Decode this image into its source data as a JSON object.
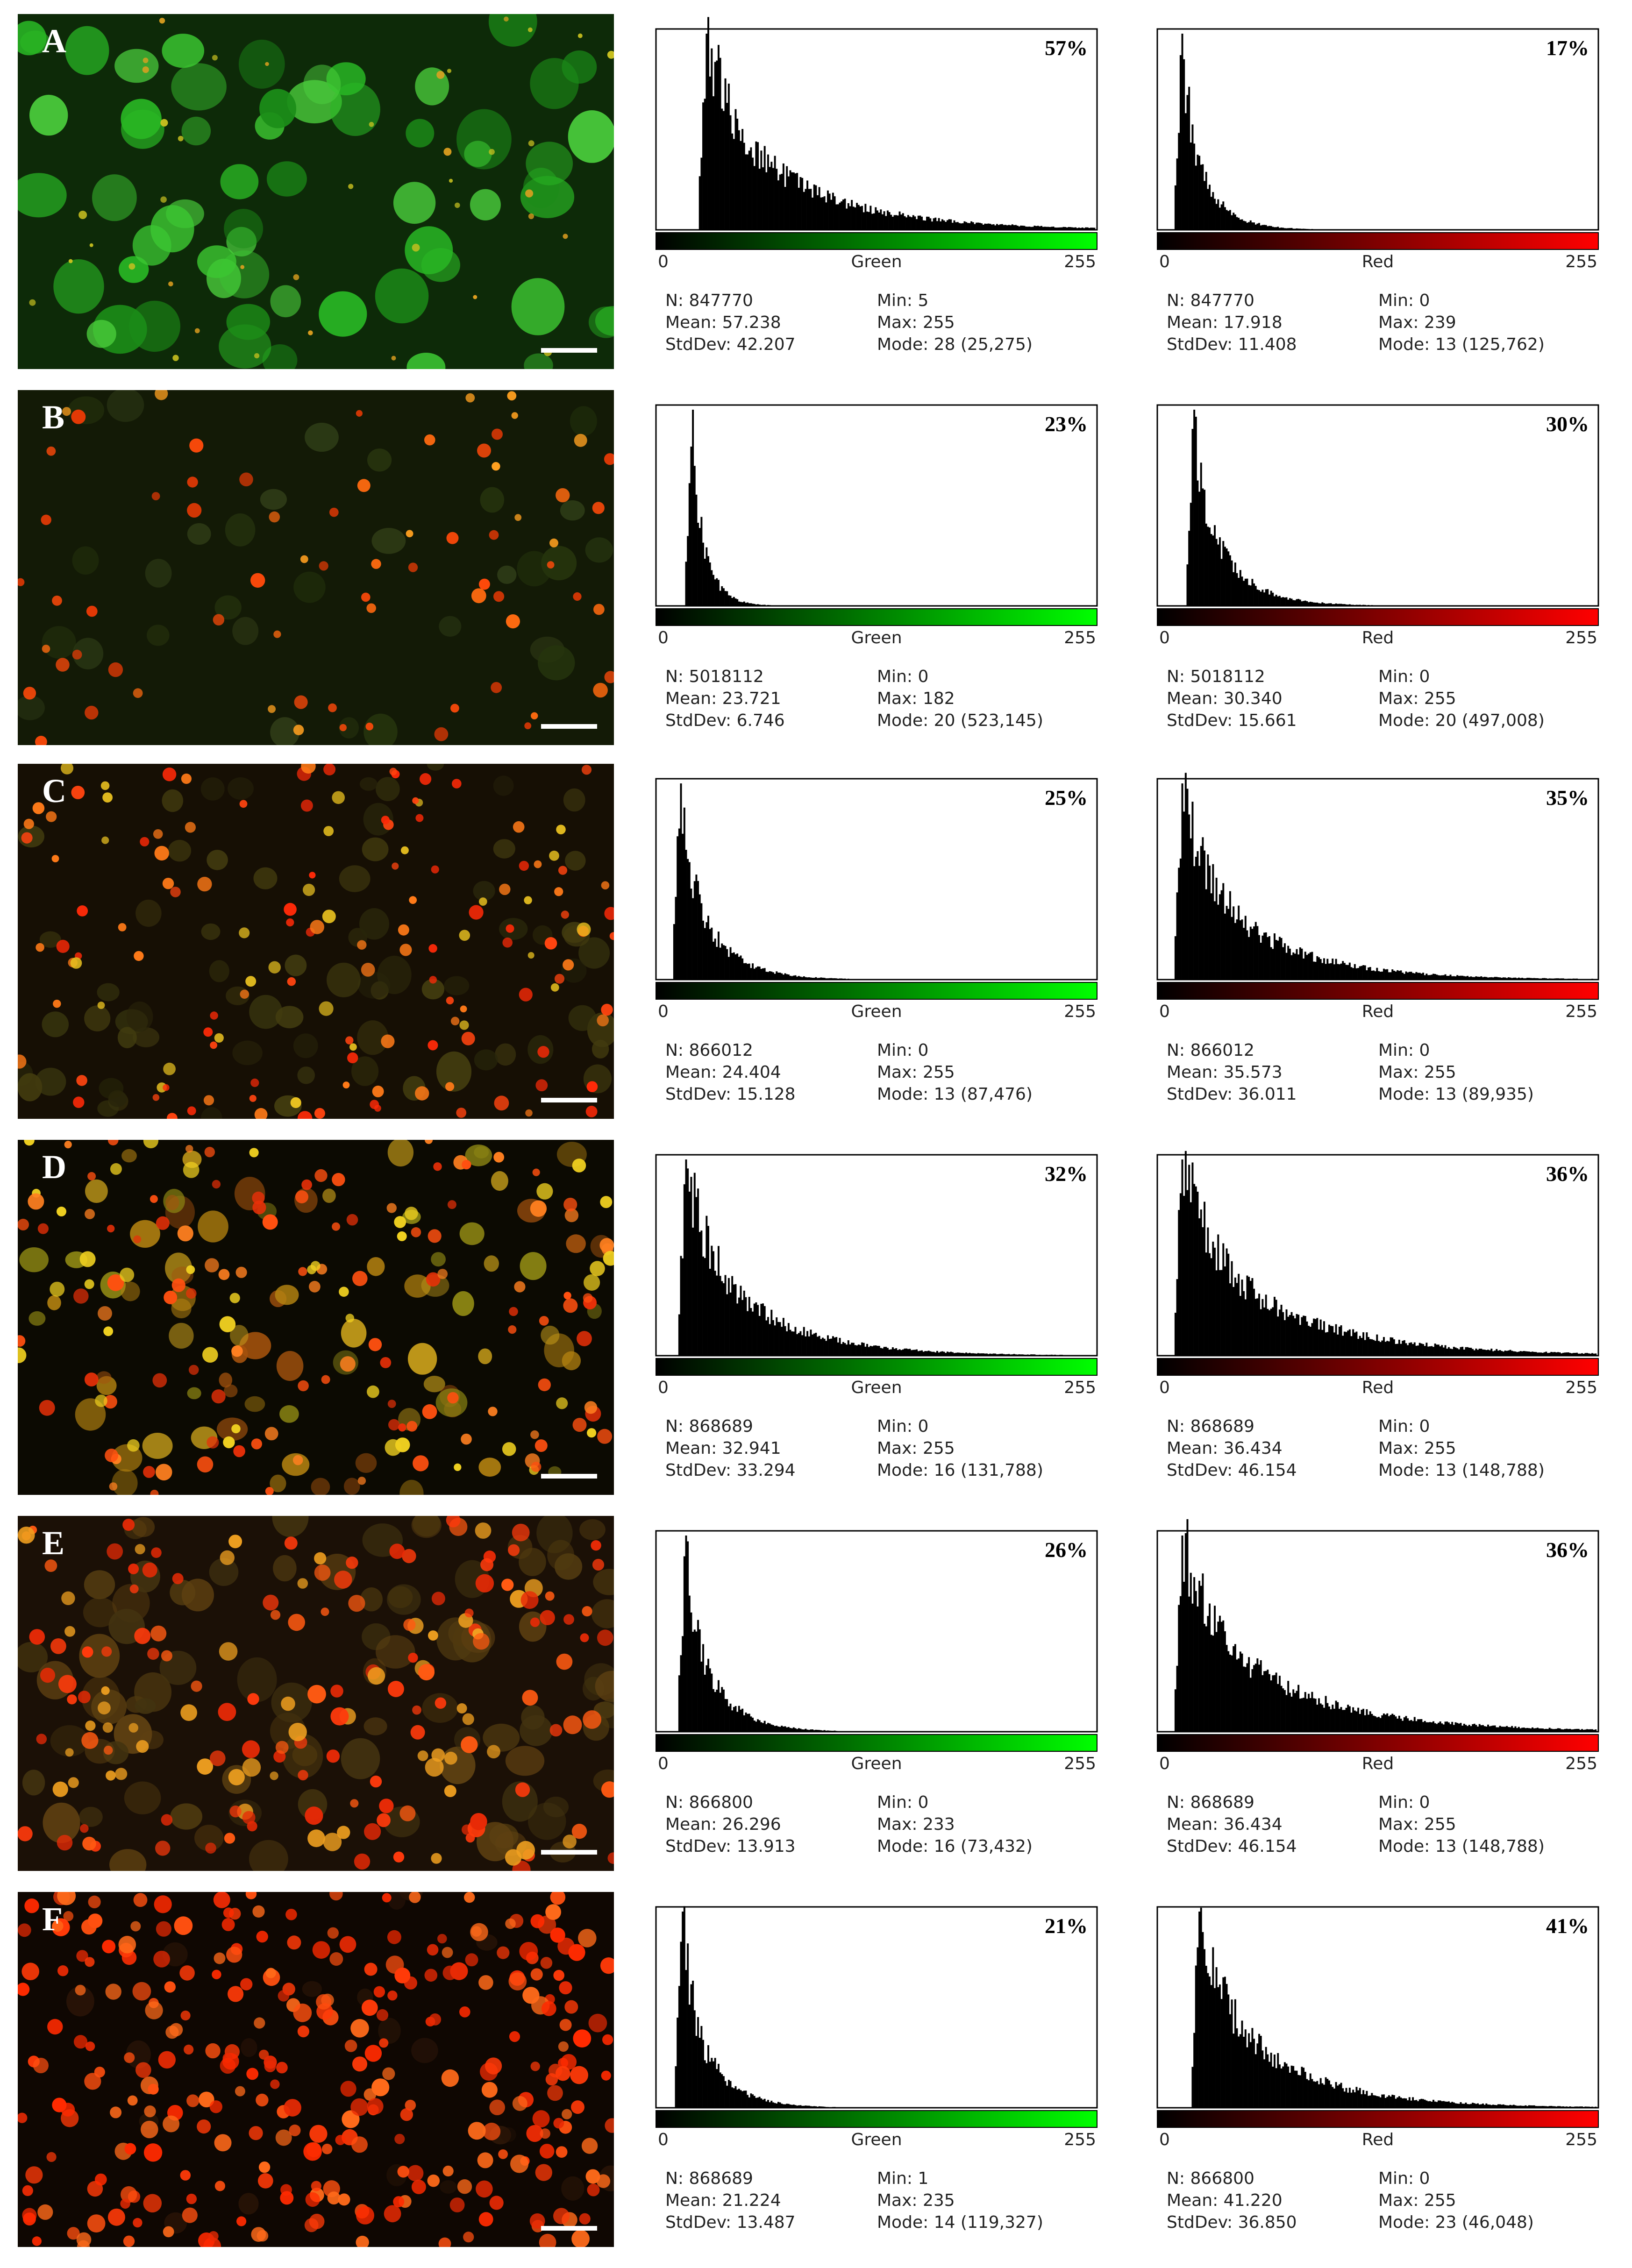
{
  "colors": {
    "green_bar_end": "#00ff00",
    "red_bar_end": "#ff0000",
    "histogram_fill": "#000000",
    "frame": "#000000"
  },
  "panels": [
    {
      "letter": "A",
      "image_tint": "green",
      "green": {
        "percent": "57%",
        "axis_min": "0",
        "axis_label": "Green",
        "axis_max": "255",
        "N": "N: 847770",
        "Mean": "Mean: 57.238",
        "StdDev": "StdDev: 42.207",
        "Min": "Min: 5",
        "Max": "Max: 255",
        "Mode": "Mode: 28 (25,275)",
        "stats_value": {
          "N": 847770,
          "Mean": 57.238,
          "StdDev": 42.207,
          "Min": 5,
          "Max": 255,
          "Mode": 28,
          "ModeCount": 25275
        }
      },
      "red": {
        "percent": "17%",
        "axis_min": "0",
        "axis_label": "Red",
        "axis_max": "255",
        "N": "N: 847770",
        "Mean": "Mean: 17.918",
        "StdDev": "StdDev: 11.408",
        "Min": "Min: 0",
        "Max": "Max: 239",
        "Mode": "Mode: 13 (125,762)",
        "stats_value": {
          "N": 847770,
          "Mean": 17.918,
          "StdDev": 11.408,
          "Min": 0,
          "Max": 239,
          "Mode": 13,
          "ModeCount": 125762
        }
      }
    },
    {
      "letter": "B",
      "image_tint": "sparse",
      "green": {
        "percent": "23%",
        "axis_min": "0",
        "axis_label": "Green",
        "axis_max": "255",
        "N": "N: 5018112",
        "Mean": "Mean: 23.721",
        "StdDev": "StdDev: 6.746",
        "Min": "Min: 0",
        "Max": "Max: 182",
        "Mode": "Mode: 20 (523,145)",
        "stats_value": {
          "N": 5018112,
          "Mean": 23.721,
          "StdDev": 6.746,
          "Min": 0,
          "Max": 182,
          "Mode": 20,
          "ModeCount": 523145
        }
      },
      "red": {
        "percent": "30%",
        "axis_min": "0",
        "axis_label": "Red",
        "axis_max": "255",
        "N": "N: 5018112",
        "Mean": "Mean: 30.340",
        "StdDev": "StdDev: 15.661",
        "Min": "Min: 0",
        "Max": "Max: 255",
        "Mode": "Mode: 20 (497,008)",
        "stats_value": {
          "N": 5018112,
          "Mean": 30.34,
          "StdDev": 15.661,
          "Min": 0,
          "Max": 255,
          "Mode": 20,
          "ModeCount": 497008
        }
      }
    },
    {
      "letter": "C",
      "image_tint": "mixed",
      "green": {
        "percent": "25%",
        "axis_min": "0",
        "axis_label": "Green",
        "axis_max": "255",
        "N": "N: 866012",
        "Mean": "Mean: 24.404",
        "StdDev": "StdDev: 15.128",
        "Min": "Min: 0",
        "Max": "Max: 255",
        "Mode": "Mode: 13 (87,476)",
        "stats_value": {
          "N": 866012,
          "Mean": 24.404,
          "StdDev": 15.128,
          "Min": 0,
          "Max": 255,
          "Mode": 13,
          "ModeCount": 87476
        }
      },
      "red": {
        "percent": "35%",
        "axis_min": "0",
        "axis_label": "Red",
        "axis_max": "255",
        "N": "N: 866012",
        "Mean": "Mean: 35.573",
        "StdDev": "StdDev: 36.011",
        "Min": "Min: 0",
        "Max": "Max: 255",
        "Mode": "Mode: 13 (89,935)",
        "stats_value": {
          "N": 866012,
          "Mean": 35.573,
          "StdDev": 36.011,
          "Min": 0,
          "Max": 255,
          "Mode": 13,
          "ModeCount": 89935
        }
      }
    },
    {
      "letter": "D",
      "image_tint": "yellow",
      "green": {
        "percent": "32%",
        "axis_min": "0",
        "axis_label": "Green",
        "axis_max": "255",
        "N": "N: 868689",
        "Mean": "Mean: 32.941",
        "StdDev": "StdDev: 33.294",
        "Min": "Min: 0",
        "Max": "Max: 255",
        "Mode": "Mode: 16 (131,788)",
        "stats_value": {
          "N": 868689,
          "Mean": 32.941,
          "StdDev": 33.294,
          "Min": 0,
          "Max": 255,
          "Mode": 16,
          "ModeCount": 131788
        }
      },
      "red": {
        "percent": "36%",
        "axis_min": "0",
        "axis_label": "Red",
        "axis_max": "255",
        "N": "N: 868689",
        "Mean": "Mean: 36.434",
        "StdDev": "StdDev: 46.154",
        "Min": "Min: 0",
        "Max": "Max: 255",
        "Mode": "Mode: 13 (148,788)",
        "stats_value": {
          "N": 868689,
          "Mean": 36.434,
          "StdDev": 46.154,
          "Min": 0,
          "Max": 255,
          "Mode": 13,
          "ModeCount": 148788
        }
      }
    },
    {
      "letter": "E",
      "image_tint": "orange",
      "green": {
        "percent": "26%",
        "axis_min": "0",
        "axis_label": "Green",
        "axis_max": "255",
        "N": "N: 866800",
        "Mean": "Mean: 26.296",
        "StdDev": "StdDev: 13.913",
        "Min": "Min: 0",
        "Max": "Max: 233",
        "Mode": "Mode: 16 (73,432)",
        "stats_value": {
          "N": 866800,
          "Mean": 26.296,
          "StdDev": 13.913,
          "Min": 0,
          "Max": 233,
          "Mode": 16,
          "ModeCount": 73432
        }
      },
      "red": {
        "percent": "36%",
        "axis_min": "0",
        "axis_label": "Red",
        "axis_max": "255",
        "N": "N: 868689",
        "Mean": "Mean: 36.434",
        "StdDev": "StdDev: 46.154",
        "Min": "Min: 0",
        "Max": "Max: 255",
        "Mode": "Mode: 13 (148,788)",
        "stats_value": {
          "N": 868689,
          "Mean": 36.434,
          "StdDev": 46.154,
          "Min": 0,
          "Max": 255,
          "Mode": 13,
          "ModeCount": 148788
        }
      }
    },
    {
      "letter": "F",
      "image_tint": "red",
      "green": {
        "percent": "21%",
        "axis_min": "0",
        "axis_label": "Green",
        "axis_max": "255",
        "N": "N: 868689",
        "Mean": "Mean: 21.224",
        "StdDev": "StdDev: 13.487",
        "Min": "Min: 1",
        "Max": "Max: 235",
        "Mode": "Mode: 14 (119,327)",
        "stats_value": {
          "N": 868689,
          "Mean": 21.224,
          "StdDev": 13.487,
          "Min": 1,
          "Max": 235,
          "Mode": 14,
          "ModeCount": 119327
        }
      },
      "red": {
        "percent": "41%",
        "axis_min": "0",
        "axis_label": "Red",
        "axis_max": "255",
        "N": "N: 866800",
        "Mean": "Mean: 41.220",
        "StdDev": "StdDev: 36.850",
        "Min": "Min: 0",
        "Max": "Max: 255",
        "Mode": "Mode: 23 (46,048)",
        "stats_value": {
          "N": 866800,
          "Mean": 41.22,
          "StdDev": 36.85,
          "Min": 0,
          "Max": 255,
          "Mode": 23,
          "ModeCount": 46048
        }
      }
    }
  ],
  "chart_data": [
    {
      "type": "bar",
      "panel": "A",
      "channel": "Green",
      "x_range": [
        0,
        255
      ],
      "xlabel": "Green",
      "annotation": "57%",
      "mean": 57.238,
      "stddev": 42.207,
      "mode": 28,
      "min": 5,
      "max": 255
    },
    {
      "type": "bar",
      "panel": "A",
      "channel": "Red",
      "x_range": [
        0,
        255
      ],
      "xlabel": "Red",
      "annotation": "17%",
      "mean": 17.918,
      "stddev": 11.408,
      "mode": 13,
      "min": 0,
      "max": 239
    },
    {
      "type": "bar",
      "panel": "B",
      "channel": "Green",
      "x_range": [
        0,
        255
      ],
      "xlabel": "Green",
      "annotation": "23%",
      "mean": 23.721,
      "stddev": 6.746,
      "mode": 20,
      "min": 0,
      "max": 182
    },
    {
      "type": "bar",
      "panel": "B",
      "channel": "Red",
      "x_range": [
        0,
        255
      ],
      "xlabel": "Red",
      "annotation": "30%",
      "mean": 30.34,
      "stddev": 15.661,
      "mode": 20,
      "min": 0,
      "max": 255
    },
    {
      "type": "bar",
      "panel": "C",
      "channel": "Green",
      "x_range": [
        0,
        255
      ],
      "xlabel": "Green",
      "annotation": "25%",
      "mean": 24.404,
      "stddev": 15.128,
      "mode": 13,
      "min": 0,
      "max": 255
    },
    {
      "type": "bar",
      "panel": "C",
      "channel": "Red",
      "x_range": [
        0,
        255
      ],
      "xlabel": "Red",
      "annotation": "35%",
      "mean": 35.573,
      "stddev": 36.011,
      "mode": 13,
      "min": 0,
      "max": 255
    },
    {
      "type": "bar",
      "panel": "D",
      "channel": "Green",
      "x_range": [
        0,
        255
      ],
      "xlabel": "Green",
      "annotation": "32%",
      "mean": 32.941,
      "stddev": 33.294,
      "mode": 16,
      "min": 0,
      "max": 255
    },
    {
      "type": "bar",
      "panel": "D",
      "channel": "Red",
      "x_range": [
        0,
        255
      ],
      "xlabel": "Red",
      "annotation": "36%",
      "mean": 36.434,
      "stddev": 46.154,
      "mode": 13,
      "min": 0,
      "max": 255
    },
    {
      "type": "bar",
      "panel": "E",
      "channel": "Green",
      "x_range": [
        0,
        255
      ],
      "xlabel": "Green",
      "annotation": "26%",
      "mean": 26.296,
      "stddev": 13.913,
      "mode": 16,
      "min": 0,
      "max": 233
    },
    {
      "type": "bar",
      "panel": "E",
      "channel": "Red",
      "x_range": [
        0,
        255
      ],
      "xlabel": "Red",
      "annotation": "36%",
      "mean": 36.434,
      "stddev": 46.154,
      "mode": 13,
      "min": 0,
      "max": 255
    },
    {
      "type": "bar",
      "panel": "F",
      "channel": "Green",
      "x_range": [
        0,
        255
      ],
      "xlabel": "Green",
      "annotation": "21%",
      "mean": 21.224,
      "stddev": 13.487,
      "mode": 14,
      "min": 1,
      "max": 235
    },
    {
      "type": "bar",
      "panel": "F",
      "channel": "Red",
      "x_range": [
        0,
        255
      ],
      "xlabel": "Red",
      "annotation": "41%",
      "mean": 41.22,
      "stddev": 36.85,
      "mode": 23,
      "min": 0,
      "max": 255
    }
  ]
}
